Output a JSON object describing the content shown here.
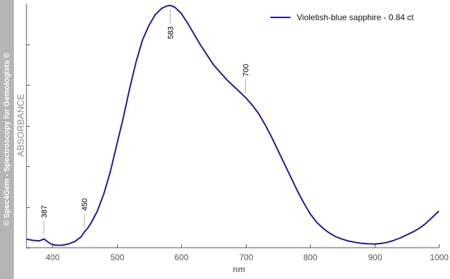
{
  "watermark": "© Spec4Gem - Spectroscopy for Gemologists ©",
  "chart_data": {
    "type": "line",
    "title": "",
    "xlabel": "nm",
    "ylabel": "ABSORBANCE",
    "xlim": [
      360,
      1000
    ],
    "ylim": [
      0,
      1
    ],
    "x_ticks": [
      400,
      500,
      600,
      700,
      800,
      900,
      1000
    ],
    "y_tick_count": 6,
    "grid": false,
    "legend_position": "top-right",
    "series": [
      {
        "name": "Violetish-blue sapphire - 0.84 ct",
        "color": "#2a0fa0",
        "x": [
          360,
          370,
          380,
          387,
          392,
          398,
          405,
          415,
          425,
          435,
          445,
          450,
          455,
          460,
          470,
          480,
          490,
          500,
          510,
          520,
          530,
          540,
          550,
          560,
          570,
          578,
          583,
          590,
          600,
          610,
          620,
          630,
          640,
          650,
          660,
          670,
          680,
          690,
          700,
          710,
          720,
          730,
          740,
          750,
          760,
          770,
          780,
          790,
          800,
          810,
          820,
          830,
          840,
          850,
          860,
          870,
          880,
          890,
          900,
          910,
          920,
          930,
          940,
          950,
          960,
          970,
          980,
          990,
          1000
        ],
        "y": [
          0.035,
          0.03,
          0.028,
          0.036,
          0.026,
          0.015,
          0.01,
          0.01,
          0.015,
          0.025,
          0.045,
          0.065,
          0.08,
          0.1,
          0.15,
          0.22,
          0.31,
          0.42,
          0.53,
          0.65,
          0.76,
          0.85,
          0.91,
          0.955,
          0.98,
          0.99,
          0.992,
          0.985,
          0.96,
          0.92,
          0.875,
          0.83,
          0.79,
          0.75,
          0.72,
          0.69,
          0.665,
          0.64,
          0.615,
          0.585,
          0.55,
          0.505,
          0.455,
          0.4,
          0.345,
          0.29,
          0.235,
          0.185,
          0.14,
          0.105,
          0.08,
          0.06,
          0.045,
          0.035,
          0.027,
          0.022,
          0.018,
          0.016,
          0.015,
          0.017,
          0.022,
          0.03,
          0.04,
          0.052,
          0.065,
          0.08,
          0.1,
          0.125,
          0.15
        ]
      }
    ],
    "annotations": [
      {
        "label": "387",
        "x": 387,
        "y": 0.036
      },
      {
        "label": "450",
        "x": 450,
        "y": 0.065
      },
      {
        "label": "583",
        "x": 583,
        "y": 0.992
      },
      {
        "label": "700",
        "x": 700,
        "y": 0.615
      }
    ]
  }
}
